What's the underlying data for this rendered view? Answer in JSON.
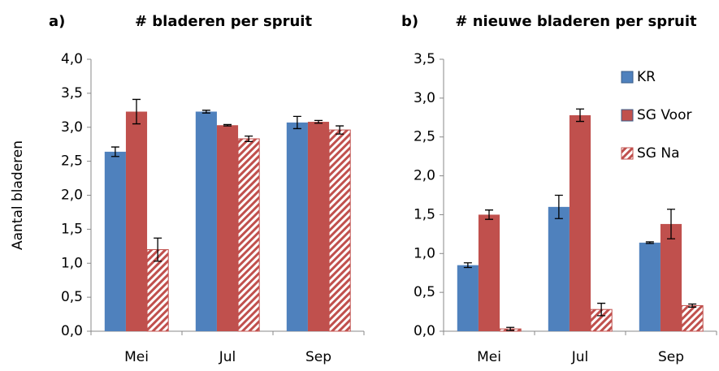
{
  "chart_data": [
    {
      "type": "bar",
      "panel": "a)",
      "title": "# bladeren per spruit",
      "ylabel": "Aantal bladeren",
      "categories": [
        "Mei",
        "Jul",
        "Sep"
      ],
      "series": [
        {
          "color": "#4f81bd",
          "pattern": "solid",
          "values": [
            2.64,
            3.23,
            3.07
          ],
          "errors": [
            0.07,
            0.02,
            0.09
          ]
        },
        {
          "color": "#c0504d",
          "pattern": "solid",
          "values": [
            3.23,
            3.03,
            3.08
          ],
          "errors": [
            0.18,
            0.01,
            0.02
          ]
        },
        {
          "color": "#c0504d",
          "pattern": "hatch",
          "values": [
            1.2,
            2.83,
            2.96
          ],
          "errors": [
            0.17,
            0.04,
            0.06
          ]
        }
      ],
      "ylim": [
        0,
        4
      ],
      "yticks": [
        {
          "value": 0,
          "label": "0,0"
        },
        {
          "value": 0.5,
          "label": "0,5"
        },
        {
          "value": 1,
          "label": "1,0"
        },
        {
          "value": 1.5,
          "label": "1,5"
        },
        {
          "value": 2,
          "label": "2,0"
        },
        {
          "value": 2.5,
          "label": "2,5"
        },
        {
          "value": 3,
          "label": "3,0"
        },
        {
          "value": 3.5,
          "label": "3,5"
        },
        {
          "value": 4,
          "label": "4,0"
        }
      ]
    },
    {
      "type": "bar",
      "panel": "b)",
      "title": "# nieuwe bladeren per spruit",
      "categories": [
        "Mei",
        "Jul",
        "Sep"
      ],
      "series": [
        {
          "name": "KR",
          "color": "#4f81bd",
          "pattern": "solid",
          "values": [
            0.85,
            1.6,
            1.14
          ],
          "errors": [
            0.03,
            0.15,
            0.01
          ]
        },
        {
          "name": "SG Voor",
          "color": "#c0504d",
          "pattern": "solid",
          "values": [
            1.5,
            2.78,
            1.38
          ],
          "errors": [
            0.06,
            0.08,
            0.19
          ]
        },
        {
          "name": "SG Na",
          "color": "#c0504d",
          "pattern": "hatch",
          "values": [
            0.03,
            0.28,
            0.33
          ],
          "errors": [
            0.02,
            0.08,
            0.02
          ]
        }
      ],
      "ylim": [
        0,
        3.5
      ],
      "yticks": [
        {
          "value": 0,
          "label": "0,0"
        },
        {
          "value": 0.5,
          "label": "0,5"
        },
        {
          "value": 1,
          "label": "1,0"
        },
        {
          "value": 1.5,
          "label": "1,5"
        },
        {
          "value": 2,
          "label": "2,0"
        },
        {
          "value": 2.5,
          "label": "2,5"
        },
        {
          "value": 3,
          "label": "3,0"
        },
        {
          "value": 3.5,
          "label": "3,5"
        }
      ],
      "legend": "upper right"
    }
  ]
}
